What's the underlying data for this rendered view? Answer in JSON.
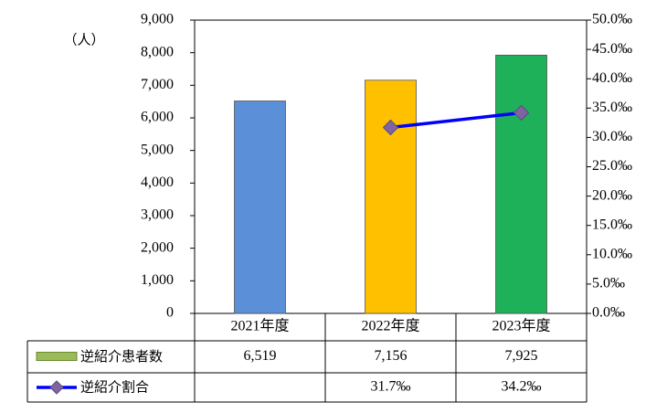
{
  "chart_data": {
    "type": "bar-line",
    "y_unit": "（人）",
    "categories": [
      "2021年度",
      "2022年度",
      "2023年度"
    ],
    "series": [
      {
        "name": "逆紹介患者数",
        "type": "bar",
        "color": "#9bbb59",
        "colors": [
          "#5b8fd8",
          "#ffc000",
          "#1fb05a"
        ],
        "values": [
          6519,
          7156,
          7925
        ],
        "value_labels": [
          "6,519",
          "7,156",
          "7,925"
        ]
      },
      {
        "name": "逆紹介割合",
        "type": "line",
        "axis": "y2",
        "color": "#0000ff",
        "marker_color": "#8064a2",
        "values": [
          null,
          31.7,
          34.2
        ],
        "value_labels": [
          null,
          "31.7‰",
          "34.2‰"
        ]
      }
    ],
    "ylim": [
      0,
      9000
    ],
    "yticks": [
      0,
      {
        "value": 1000,
        "label": "1,000"
      },
      {
        "value": 2000,
        "label": "2,000"
      },
      {
        "value": 3000,
        "label": "3,000"
      },
      {
        "value": 4000,
        "label": "4,000"
      },
      {
        "value": 5000,
        "label": "5,000"
      },
      {
        "value": 6000,
        "label": "6,000"
      },
      {
        "value": 7000,
        "label": "7,000"
      },
      {
        "value": 8000,
        "label": "8,000"
      },
      {
        "value": 9000,
        "label": "9,000"
      }
    ],
    "y2lim": [
      0,
      50
    ],
    "y2ticks": [
      {
        "value": 0,
        "label": "0.0‰"
      },
      {
        "value": 5,
        "label": "5.0‰"
      },
      {
        "value": 10,
        "label": "10.0‰"
      },
      {
        "value": 15,
        "label": "15.0‰"
      },
      {
        "value": 20,
        "label": "20.0‰"
      },
      {
        "value": 25,
        "label": "25.0‰"
      },
      {
        "value": 30,
        "label": "30.0‰"
      },
      {
        "value": 35,
        "label": "35.0‰"
      },
      {
        "value": 40,
        "label": "40.0‰"
      },
      {
        "value": 45,
        "label": "45.0‰"
      },
      {
        "value": 50,
        "label": "50.0‰"
      }
    ],
    "data_table": true
  }
}
